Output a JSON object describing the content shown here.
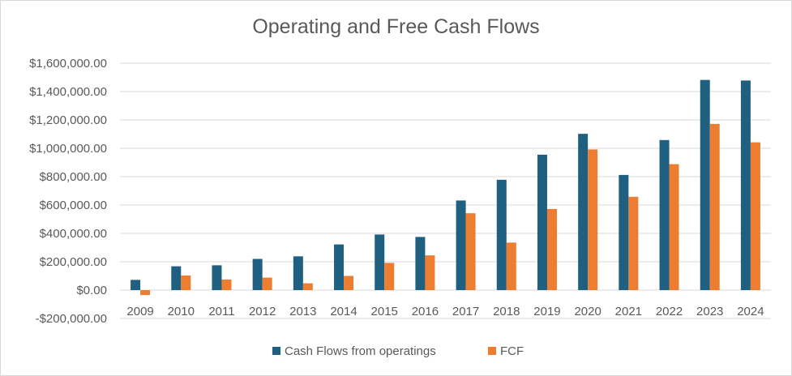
{
  "chart_data": {
    "type": "bar",
    "title": "Operating and Free Cash Flows",
    "xlabel": "",
    "ylabel": "",
    "ylim": [
      -200000,
      1600000
    ],
    "yticks": [
      -200000,
      0,
      200000,
      400000,
      600000,
      800000,
      1000000,
      1200000,
      1400000,
      1600000
    ],
    "ytick_labels": [
      "-$200,000.00",
      "$0.00",
      "$200,000.00",
      "$400,000.00",
      "$600,000.00",
      "$800,000.00",
      "$1,000,000.00",
      "$1,200,000.00",
      "$1,400,000.00",
      "$1,600,000.00"
    ],
    "categories": [
      "2009",
      "2010",
      "2011",
      "2012",
      "2013",
      "2014",
      "2015",
      "2016",
      "2017",
      "2018",
      "2019",
      "2020",
      "2021",
      "2022",
      "2023",
      "2024"
    ],
    "series": [
      {
        "name": "Cash Flows from operatings",
        "color": "#1f5f7f",
        "values": [
          72000,
          168000,
          175000,
          220000,
          238000,
          322000,
          392000,
          375000,
          632000,
          778000,
          955000,
          1102000,
          812000,
          1058000,
          1482000,
          1478000
        ]
      },
      {
        "name": "FCF",
        "color": "#ed7d31",
        "values": [
          -35000,
          103000,
          75000,
          88000,
          48000,
          100000,
          192000,
          245000,
          542000,
          335000,
          572000,
          992000,
          658000,
          888000,
          1172000,
          1042000
        ]
      }
    ],
    "grid": true,
    "legend_position": "bottom"
  }
}
